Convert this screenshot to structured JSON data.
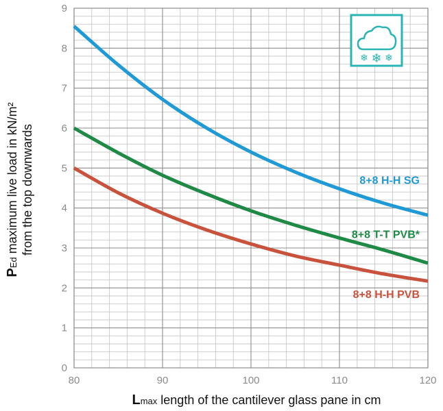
{
  "chart_data": {
    "type": "line",
    "xlim": [
      80,
      120
    ],
    "ylim": [
      0,
      9
    ],
    "x_ticks": [
      "80",
      "90",
      "100",
      "110",
      "120"
    ],
    "y_ticks": [
      "0",
      "1",
      "2",
      "3",
      "4",
      "5",
      "6",
      "7",
      "8",
      "9"
    ],
    "grid": true,
    "xlabel": {
      "bold": "L",
      "sub": "max",
      "rest": " length of the cantilever glass pane in cm"
    },
    "ylabel": {
      "bold": "P",
      "sub": "Ed",
      "line1_rest": " maximum live load in kN/m²",
      "line2": "from the top downwards"
    },
    "icon": "snow-cloud-icon",
    "icon_color": "#2ab4b4",
    "series": [
      {
        "name": "8+8 H-H SG",
        "color": "#1f9ad6",
        "x": [
          80,
          85,
          90,
          95,
          100,
          105,
          110,
          115,
          120
        ],
        "y": [
          8.55,
          7.58,
          6.72,
          6.0,
          5.4,
          4.9,
          4.48,
          4.12,
          3.82
        ]
      },
      {
        "name": "8+8 T-T PVB*",
        "color": "#1e8a45",
        "x": [
          80,
          85,
          90,
          95,
          100,
          105,
          110,
          115,
          120
        ],
        "y": [
          6.0,
          5.38,
          4.82,
          4.35,
          3.93,
          3.57,
          3.25,
          2.95,
          2.62
        ]
      },
      {
        "name": "8+8 H-H PVB",
        "color": "#c8523c",
        "x": [
          80,
          85,
          90,
          95,
          100,
          105,
          110,
          115,
          120
        ],
        "y": [
          5.0,
          4.38,
          3.87,
          3.45,
          3.1,
          2.8,
          2.57,
          2.35,
          2.17
        ]
      }
    ]
  }
}
